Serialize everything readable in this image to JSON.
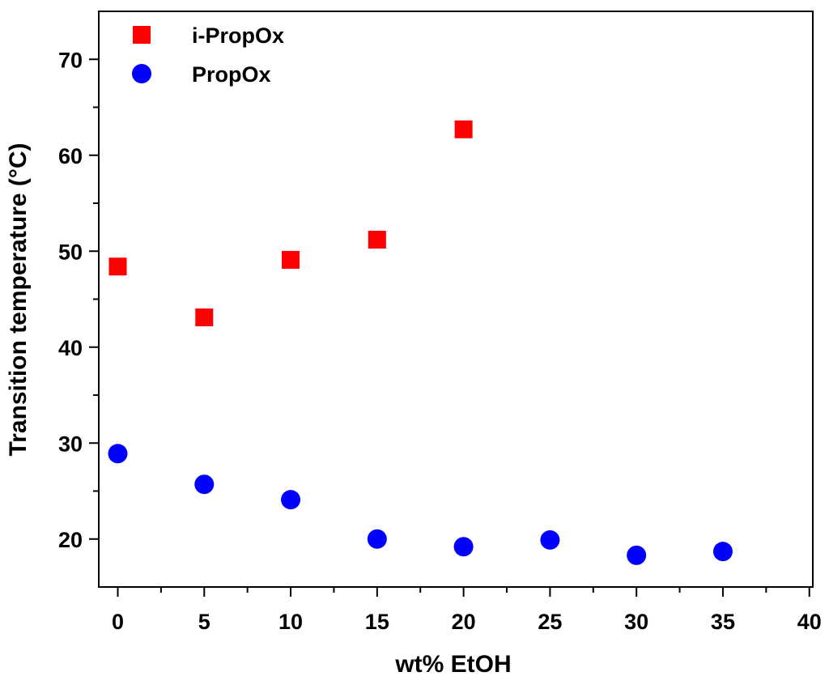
{
  "chart_data": {
    "type": "scatter",
    "x_label": "wt% EtOH",
    "y_label": "Transition temperature (°C)",
    "xlim": [
      -1.1,
      40.2
    ],
    "xticks": [
      0,
      5,
      10,
      15,
      20,
      25,
      30,
      35,
      40
    ],
    "ylim": [
      15,
      75
    ],
    "yticks": [
      20,
      30,
      40,
      50,
      60,
      70
    ],
    "legend": "upper left",
    "series": [
      {
        "name": "i-PropOx",
        "color": "#ff0000",
        "marker": "square",
        "x": [
          0,
          5,
          10,
          15,
          20
        ],
        "values": [
          48.4,
          43.1,
          49.1,
          51.2,
          62.7
        ]
      },
      {
        "name": "PropOx",
        "color": "#0000ff",
        "marker": "circle",
        "x": [
          0,
          5,
          10,
          15,
          20,
          25,
          30,
          35
        ],
        "values": [
          28.9,
          25.7,
          24.1,
          20.0,
          19.2,
          19.9,
          18.3,
          18.7
        ]
      }
    ]
  }
}
